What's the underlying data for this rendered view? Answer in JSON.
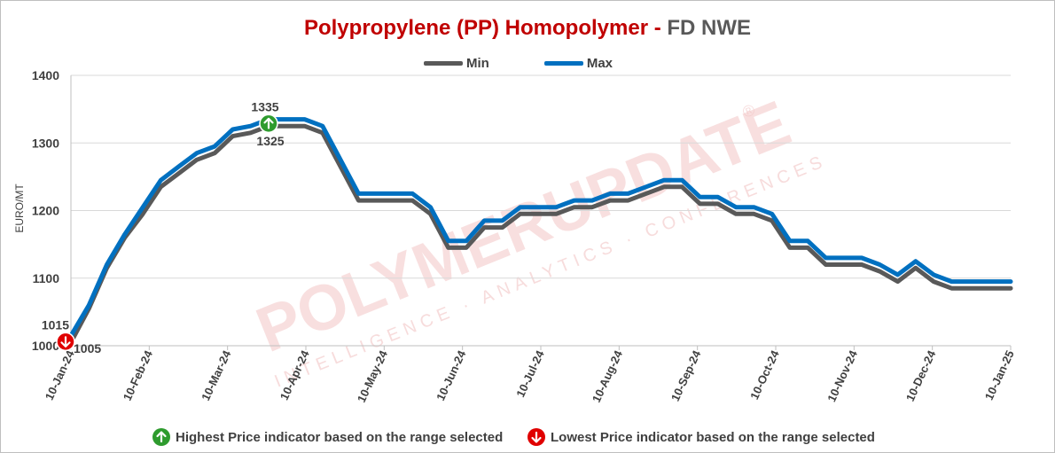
{
  "title": {
    "main": "Polypropylene (PP) Homopolymer",
    "separator": " - ",
    "sub": "FD NWE"
  },
  "footer": {
    "highest_note": "Highest Price indicator based on the range selected",
    "lowest_note": "Lowest Price indicator based on the range selected"
  },
  "watermark": {
    "brand": "POLYMERUPDATE",
    "tagline": "INTELLIGENCE · ANALYTICS · CONFERENCES",
    "registered": "®"
  },
  "colors": {
    "title": "#c00000",
    "subtitle": "#595959",
    "min_series": "#595959",
    "max_series": "#0070c0",
    "highest_marker": "#2e9b2e",
    "lowest_marker": "#e00000",
    "watermark": "#f2c4c4"
  },
  "chart_data": {
    "type": "line",
    "ylabel": "EURO/MT",
    "ylim": [
      1000,
      1400
    ],
    "yticks": [
      1000,
      1100,
      1200,
      1300,
      1400
    ],
    "xlim": [
      "2024-01-10",
      "2025-01-10"
    ],
    "xticks": [
      "10-Jan-24",
      "10-Feb-24",
      "10-Mar-24",
      "10-Apr-24",
      "10-May-24",
      "10-Jun-24",
      "10-Jul-24",
      "10-Aug-24",
      "10-Sep-24",
      "10-Oct-24",
      "10-Nov-24",
      "10-Dec-24",
      "10-Jan-25"
    ],
    "grid": "horizontal",
    "legend_position": "top",
    "series": [
      {
        "name": "Min",
        "points": [
          [
            "2024-01-10",
            1005
          ],
          [
            "2024-01-17",
            1055
          ],
          [
            "2024-01-24",
            1115
          ],
          [
            "2024-01-31",
            1160
          ],
          [
            "2024-02-07",
            1195
          ],
          [
            "2024-02-14",
            1235
          ],
          [
            "2024-02-21",
            1255
          ],
          [
            "2024-02-28",
            1275
          ],
          [
            "2024-03-06",
            1285
          ],
          [
            "2024-03-13",
            1310
          ],
          [
            "2024-03-20",
            1315
          ],
          [
            "2024-03-27",
            1325
          ],
          [
            "2024-04-03",
            1325
          ],
          [
            "2024-04-10",
            1325
          ],
          [
            "2024-04-17",
            1315
          ],
          [
            "2024-04-24",
            1265
          ],
          [
            "2024-05-01",
            1215
          ],
          [
            "2024-05-08",
            1215
          ],
          [
            "2024-05-15",
            1215
          ],
          [
            "2024-05-22",
            1215
          ],
          [
            "2024-05-29",
            1195
          ],
          [
            "2024-06-05",
            1145
          ],
          [
            "2024-06-12",
            1145
          ],
          [
            "2024-06-19",
            1175
          ],
          [
            "2024-06-26",
            1175
          ],
          [
            "2024-07-03",
            1195
          ],
          [
            "2024-07-10",
            1195
          ],
          [
            "2024-07-17",
            1195
          ],
          [
            "2024-07-24",
            1205
          ],
          [
            "2024-07-31",
            1205
          ],
          [
            "2024-08-07",
            1215
          ],
          [
            "2024-08-14",
            1215
          ],
          [
            "2024-08-21",
            1225
          ],
          [
            "2024-08-28",
            1235
          ],
          [
            "2024-09-04",
            1235
          ],
          [
            "2024-09-11",
            1210
          ],
          [
            "2024-09-18",
            1210
          ],
          [
            "2024-09-25",
            1195
          ],
          [
            "2024-10-02",
            1195
          ],
          [
            "2024-10-09",
            1185
          ],
          [
            "2024-10-16",
            1145
          ],
          [
            "2024-10-23",
            1145
          ],
          [
            "2024-10-30",
            1120
          ],
          [
            "2024-11-06",
            1120
          ],
          [
            "2024-11-13",
            1120
          ],
          [
            "2024-11-20",
            1110
          ],
          [
            "2024-11-27",
            1095
          ],
          [
            "2024-12-04",
            1115
          ],
          [
            "2024-12-11",
            1095
          ],
          [
            "2024-12-18",
            1085
          ],
          [
            "2024-12-25",
            1085
          ],
          [
            "2025-01-01",
            1085
          ],
          [
            "2025-01-10",
            1085
          ]
        ]
      },
      {
        "name": "Max",
        "points": [
          [
            "2024-01-10",
            1015
          ],
          [
            "2024-01-17",
            1060
          ],
          [
            "2024-01-24",
            1120
          ],
          [
            "2024-01-31",
            1165
          ],
          [
            "2024-02-07",
            1205
          ],
          [
            "2024-02-14",
            1245
          ],
          [
            "2024-02-21",
            1265
          ],
          [
            "2024-02-28",
            1285
          ],
          [
            "2024-03-06",
            1295
          ],
          [
            "2024-03-13",
            1320
          ],
          [
            "2024-03-20",
            1325
          ],
          [
            "2024-03-27",
            1335
          ],
          [
            "2024-04-03",
            1335
          ],
          [
            "2024-04-10",
            1335
          ],
          [
            "2024-04-17",
            1325
          ],
          [
            "2024-04-24",
            1275
          ],
          [
            "2024-05-01",
            1225
          ],
          [
            "2024-05-08",
            1225
          ],
          [
            "2024-05-15",
            1225
          ],
          [
            "2024-05-22",
            1225
          ],
          [
            "2024-05-29",
            1205
          ],
          [
            "2024-06-05",
            1155
          ],
          [
            "2024-06-12",
            1155
          ],
          [
            "2024-06-19",
            1185
          ],
          [
            "2024-06-26",
            1185
          ],
          [
            "2024-07-03",
            1205
          ],
          [
            "2024-07-10",
            1205
          ],
          [
            "2024-07-17",
            1205
          ],
          [
            "2024-07-24",
            1215
          ],
          [
            "2024-07-31",
            1215
          ],
          [
            "2024-08-07",
            1225
          ],
          [
            "2024-08-14",
            1225
          ],
          [
            "2024-08-21",
            1235
          ],
          [
            "2024-08-28",
            1245
          ],
          [
            "2024-09-04",
            1245
          ],
          [
            "2024-09-11",
            1220
          ],
          [
            "2024-09-18",
            1220
          ],
          [
            "2024-09-25",
            1205
          ],
          [
            "2024-10-02",
            1205
          ],
          [
            "2024-10-09",
            1195
          ],
          [
            "2024-10-16",
            1155
          ],
          [
            "2024-10-23",
            1155
          ],
          [
            "2024-10-30",
            1130
          ],
          [
            "2024-11-06",
            1130
          ],
          [
            "2024-11-13",
            1130
          ],
          [
            "2024-11-20",
            1120
          ],
          [
            "2024-11-27",
            1105
          ],
          [
            "2024-12-04",
            1125
          ],
          [
            "2024-12-11",
            1105
          ],
          [
            "2024-12-18",
            1095
          ],
          [
            "2024-12-25",
            1095
          ],
          [
            "2025-01-01",
            1095
          ],
          [
            "2025-01-10",
            1095
          ]
        ]
      }
    ],
    "annotations": {
      "highest": {
        "date": "2024-03-27",
        "max_label": "1335",
        "min_label": "1325"
      },
      "lowest": {
        "date": "2024-01-10",
        "max_label": "1015",
        "min_label": "1005"
      }
    }
  }
}
